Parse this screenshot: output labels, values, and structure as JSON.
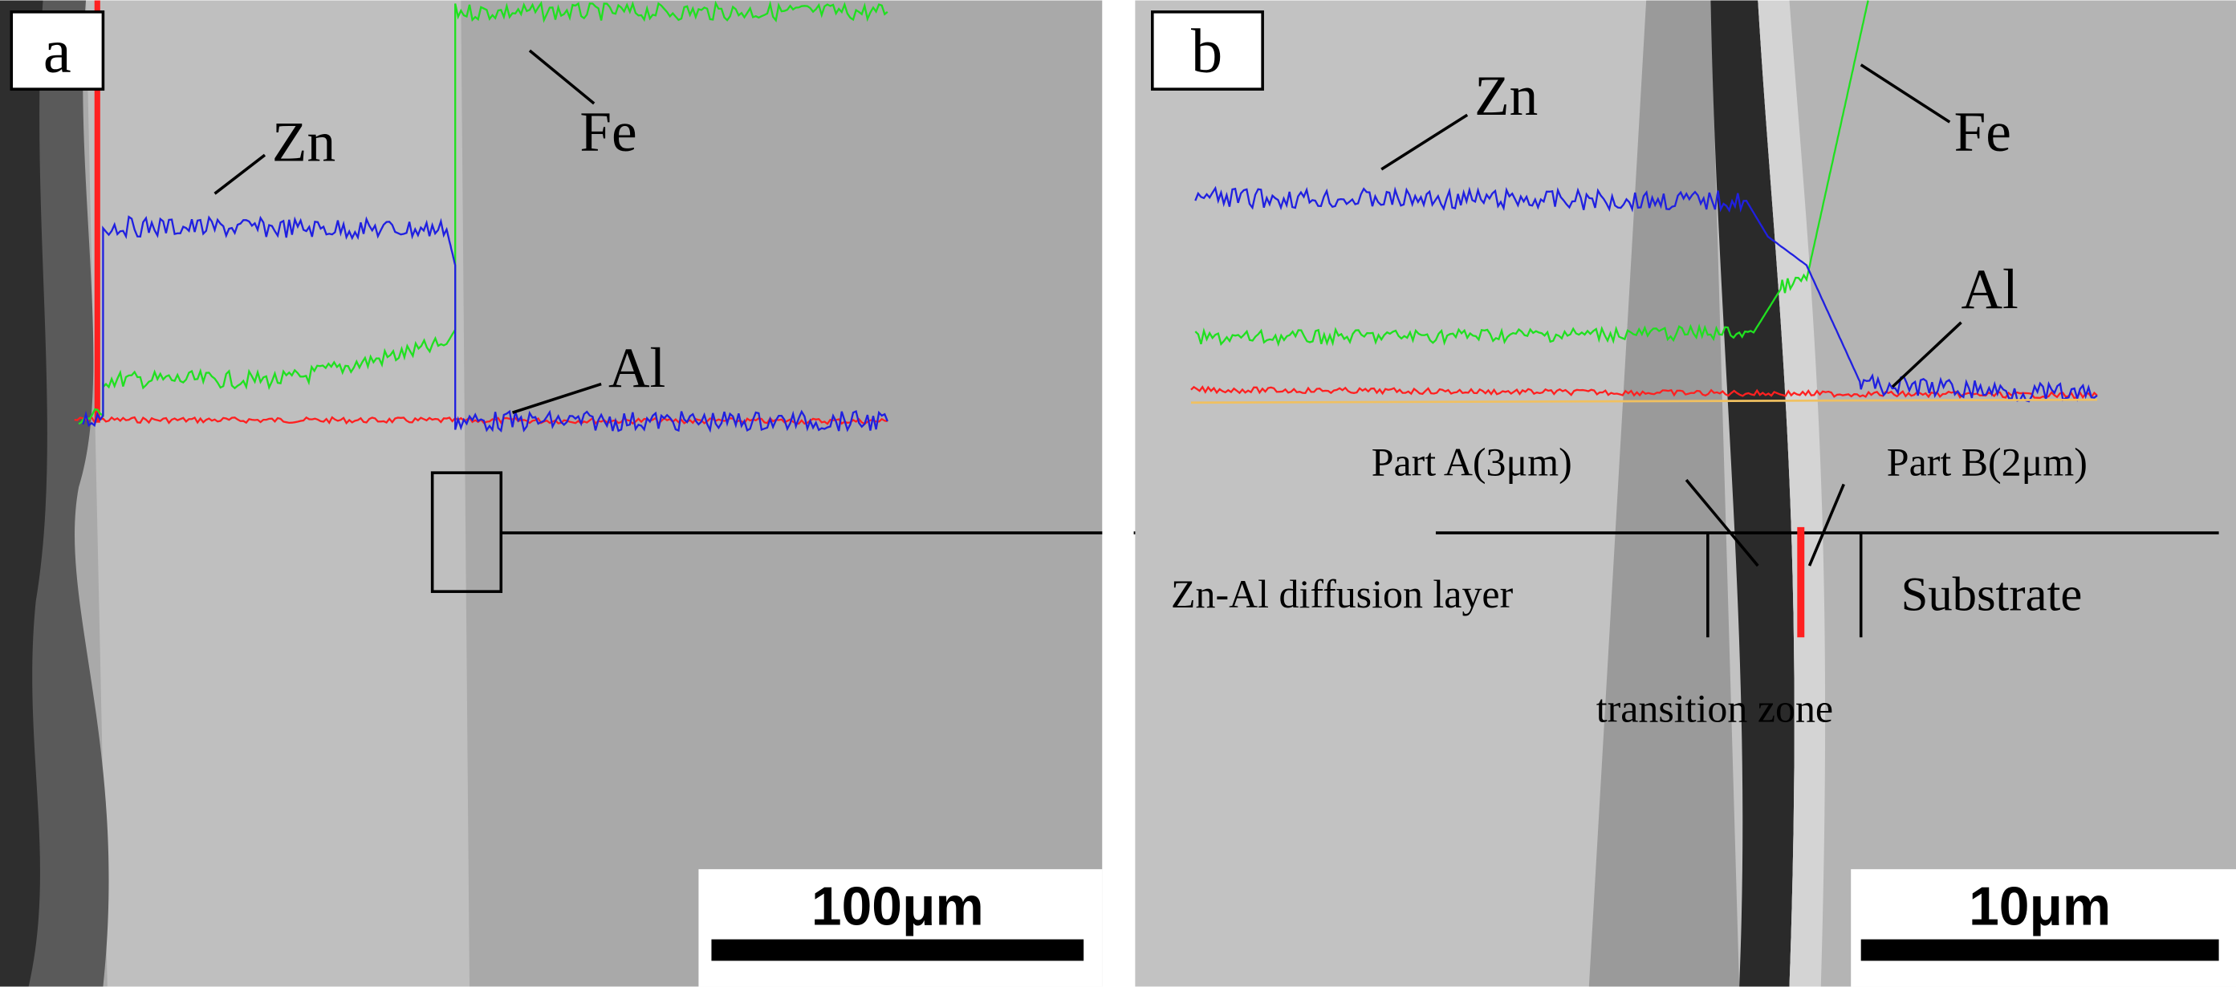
{
  "panels": [
    {
      "label": "a",
      "elements": [
        "Zn",
        "Fe",
        "Al"
      ],
      "scale_bar": "100μm"
    },
    {
      "label": "b",
      "elements": [
        "Zn",
        "Fe",
        "Al"
      ],
      "scale_bar": "10μm",
      "annotations": [
        "Part A(3μm)",
        "Part B(2μm)",
        "Zn-Al diffusion layer",
        "Substrate",
        "transition zone"
      ]
    }
  ]
}
